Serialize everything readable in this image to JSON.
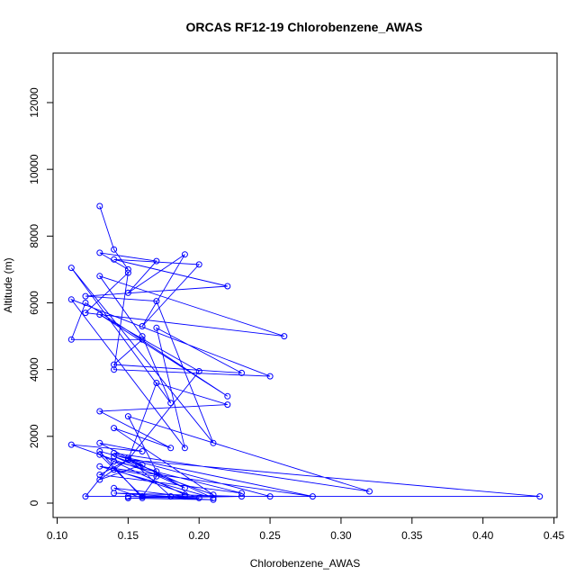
{
  "chart_data": {
    "type": "line",
    "title": "ORCAS RF12-19 Chlorobenzene_AWAS",
    "xlabel": "Chlorobenzene_AWAS",
    "ylabel": "Altitude (m)",
    "xlim": [
      0.1,
      0.45
    ],
    "ylim": [
      0,
      12000
    ],
    "x_ticks": [
      "0.10",
      "0.15",
      "0.20",
      "0.25",
      "0.30",
      "0.35",
      "0.40",
      "0.45"
    ],
    "y_ticks": [
      "0",
      "2000",
      "4000",
      "6000",
      "8000",
      "10000",
      "12000"
    ],
    "grid": false,
    "legend": "none",
    "series_color": "#0000ff",
    "marker": "open-circle",
    "series": [
      {
        "x": [
          0.13,
          0.14,
          0.15,
          0.13,
          0.17,
          0.15,
          0.19,
          0.16,
          0.2,
          0.14,
          0.22,
          0.12,
          0.17,
          0.21,
          0.11,
          0.18,
          0.16,
          0.13,
          0.26,
          0.12,
          0.15,
          0.14,
          0.25,
          0.11,
          0.19,
          0.17,
          0.23,
          0.14,
          0.16,
          0.11,
          0.12,
          0.22,
          0.13,
          0.2,
          0.15,
          0.17,
          0.22,
          0.13,
          0.18,
          0.14,
          0.21,
          0.11,
          0.16,
          0.13,
          0.19,
          0.14,
          0.17,
          0.15,
          0.32,
          0.14,
          0.16,
          0.13,
          0.15,
          0.13,
          0.23,
          0.14,
          0.12,
          0.18,
          0.15,
          0.28,
          0.13,
          0.21,
          0.15,
          0.44,
          0.16,
          0.17,
          0.14,
          0.2,
          0.15,
          0.25,
          0.13,
          0.16,
          0.14,
          0.19,
          0.15,
          0.23,
          0.14,
          0.18,
          0.15,
          0.21,
          0.16,
          0.13,
          0.19
        ],
        "y": [
          8900,
          7600,
          7000,
          7500,
          7250,
          6300,
          7450,
          5300,
          7150,
          7300,
          6500,
          6200,
          6050,
          1800,
          7050,
          3000,
          5000,
          6800,
          5000,
          5700,
          6900,
          4000,
          3800,
          6100,
          1650,
          5250,
          3900,
          4150,
          4900,
          4900,
          6000,
          3200,
          5650,
          3950,
          1300,
          3600,
          2950,
          2750,
          1650,
          2250,
          250,
          1750,
          1550,
          1800,
          450,
          1400,
          950,
          2600,
          350,
          1500,
          1150,
          700,
          1300,
          850,
          300,
          1250,
          200,
          200,
          1350,
          200,
          1100,
          150,
          1300,
          200,
          200,
          800,
          1000,
          150,
          200,
          200,
          1550,
          150,
          450,
          200,
          150,
          200,
          300,
          200,
          150,
          100,
          200,
          1450,
          250
        ]
      }
    ]
  }
}
